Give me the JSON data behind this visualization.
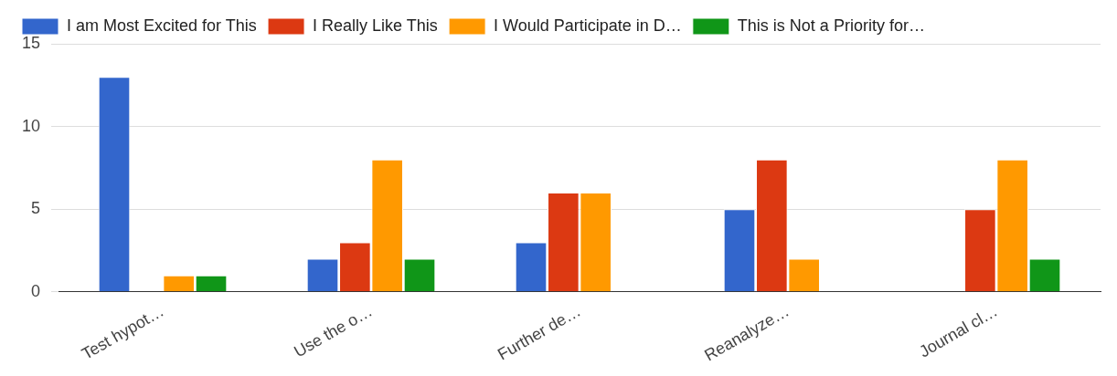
{
  "chart_data": {
    "type": "bar",
    "categories": [
      "Test hypot…",
      "Use the o…",
      "Further de…",
      "Reanalyze…",
      "Journal cl…"
    ],
    "series": [
      {
        "name": "I am Most Excited for This",
        "color": "#3366cc",
        "values": [
          13,
          2,
          3,
          5,
          0
        ]
      },
      {
        "name": "I Really Like This",
        "color": "#dc3912",
        "values": [
          0,
          3,
          6,
          8,
          5
        ]
      },
      {
        "name": "I Would Participate in D…",
        "color": "#ff9900",
        "values": [
          1,
          8,
          6,
          2,
          8
        ]
      },
      {
        "name": "This is Not a Priority for…",
        "color": "#109618",
        "values": [
          1,
          2,
          0,
          0,
          2
        ]
      }
    ],
    "ylim": [
      0,
      15
    ],
    "yticks": [
      0,
      5,
      10,
      15
    ],
    "grid": "y",
    "legend": "top"
  }
}
